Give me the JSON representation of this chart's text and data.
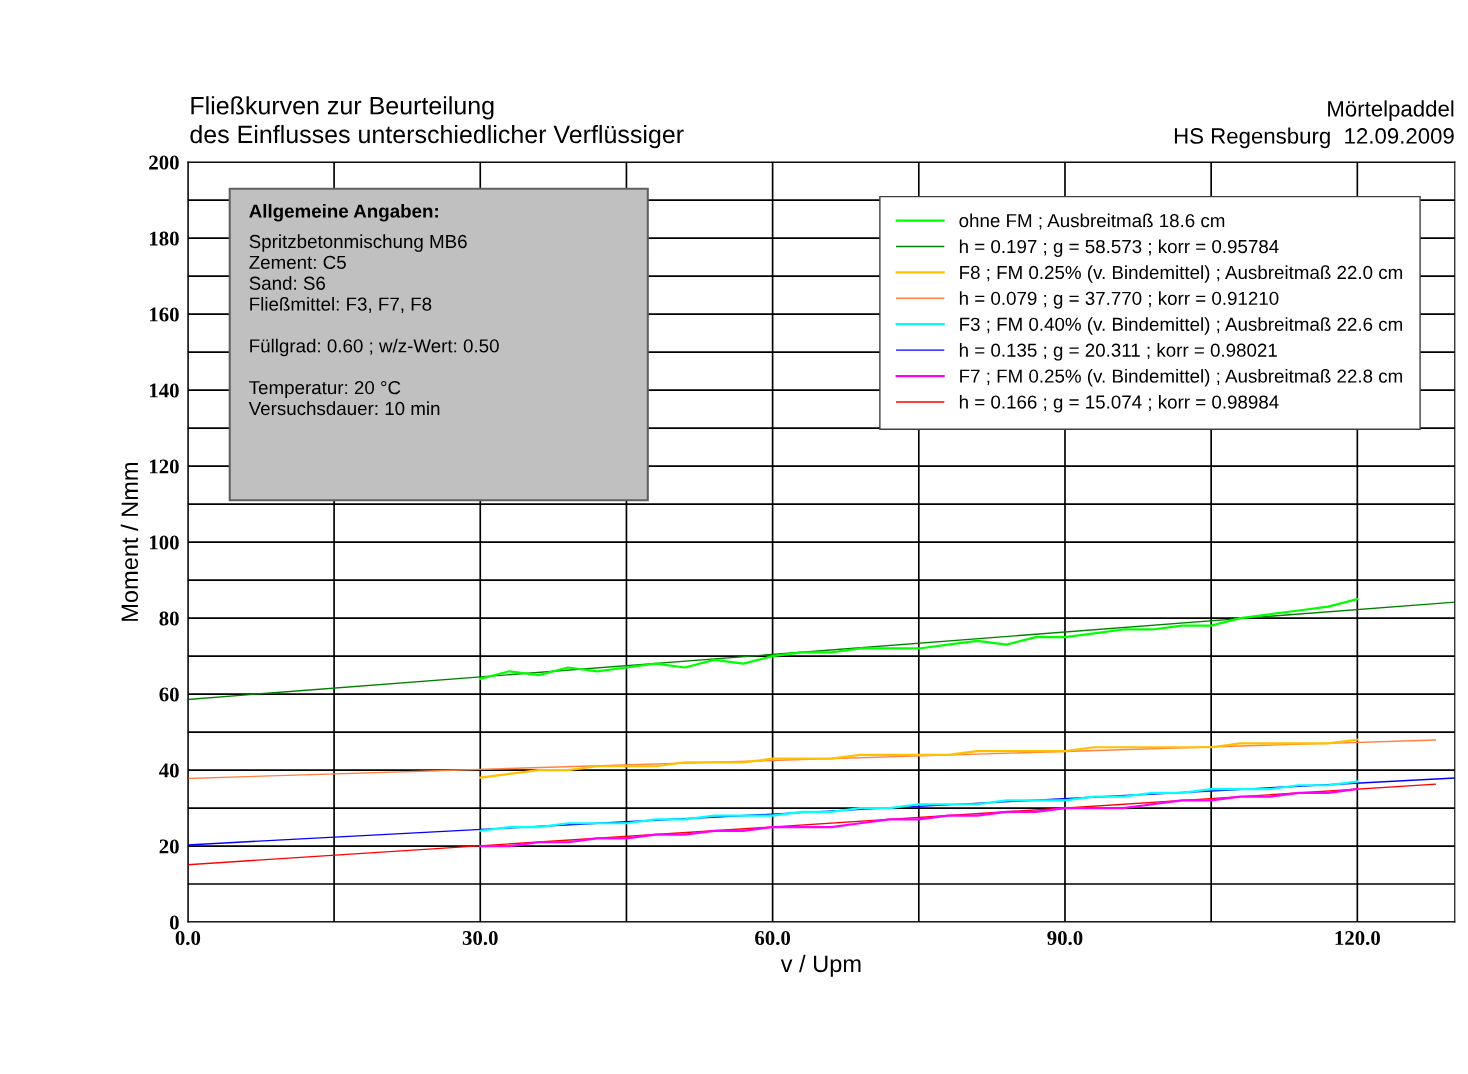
{
  "chart_data": {
    "type": "line",
    "title": "Fließkurven zur Beurteilung\ndes Einflusses unterschiedlicher Verflüssiger",
    "subtitle": "Mörtelpaddel\nHS Regensburg  12.09.2009",
    "xlabel": "v / Upm",
    "ylabel": "Moment / Nmm",
    "annotations": [
      "Allgemeine Angaben:",
      "Spritzbetonmischung MB6\nZement: C5\nSand: S6\nFließmittel: F3, F7, F8\n\nFüllgrad: 0.60 ; w/z-Wert: 0.50\n\nTemperatur: 20 °C\nVersuchsdauer: 10 min"
    ],
    "xlim": [
      0,
      130
    ],
    "ylim": [
      0,
      200
    ],
    "xticks": [
      {
        "value": 0,
        "label": "0.0"
      },
      {
        "value": 15,
        "label": null
      },
      {
        "value": 30,
        "label": "30.0"
      },
      {
        "value": 45,
        "label": null
      },
      {
        "value": 60,
        "label": "60.0"
      },
      {
        "value": 75,
        "label": null
      },
      {
        "value": 90,
        "label": "90.0"
      },
      {
        "value": 105,
        "label": null
      },
      {
        "value": 120,
        "label": "120.0"
      }
    ],
    "yticks": [
      0,
      {
        "value": 10,
        "label": null
      },
      20,
      {
        "value": 30,
        "label": null
      },
      40,
      {
        "value": 50,
        "label": null
      },
      60,
      {
        "value": 70,
        "label": null
      },
      80,
      {
        "value": 90,
        "label": null
      },
      100,
      {
        "value": 110,
        "label": null
      },
      120,
      {
        "value": 130,
        "label": null
      },
      140,
      {
        "value": 150,
        "label": null
      },
      160,
      {
        "value": 170,
        "label": null
      },
      180,
      {
        "value": 190,
        "label": null
      },
      200
    ],
    "grid": true,
    "legend": "top right",
    "marker": "none",
    "line_style": "solid",
    "series": [
      {
        "name": "ohne FM ; Ausbreitmaß 18.6 cm",
        "color": "#00ff00",
        "x": [
          30,
          33,
          36,
          39,
          42,
          45,
          48,
          51,
          54,
          57,
          60,
          63,
          66,
          69,
          72,
          75,
          78,
          81,
          84,
          87,
          90,
          93,
          96,
          99,
          102,
          105,
          108,
          111,
          114,
          117,
          120
        ],
        "values": [
          64,
          66,
          65,
          67,
          66,
          67,
          68,
          67,
          69,
          68,
          70,
          71,
          71,
          72,
          72,
          72,
          73,
          74,
          73,
          75,
          75,
          76,
          77,
          77,
          78,
          78,
          80,
          81,
          82,
          83,
          85
        ]
      },
      {
        "name": "h = 0.197 ; g = 58.573 ; korr = 0.95784",
        "color": "#008000",
        "x": [
          0,
          130
        ],
        "values": [
          58.6,
          84.2
        ]
      },
      {
        "name": "F8 ; FM 0.25% (v. Bindemittel) ; Ausbreitmaß 22.0 cm",
        "color": "#ffc000",
        "x": [
          30,
          33,
          36,
          39,
          42,
          45,
          48,
          51,
          54,
          57,
          60,
          63,
          66,
          69,
          72,
          75,
          78,
          81,
          84,
          87,
          90,
          93,
          96,
          99,
          102,
          105,
          108,
          111,
          114,
          117,
          120
        ],
        "values": [
          38,
          39,
          40,
          40,
          41,
          41,
          41,
          42,
          42,
          42,
          43,
          43,
          43,
          44,
          44,
          44,
          44,
          45,
          45,
          45,
          45,
          46,
          46,
          46,
          46,
          46,
          47,
          47,
          47,
          47,
          48
        ]
      },
      {
        "name": "h = 0.079 ; g = 37.770 ; korr = 0.91210",
        "color": "#ff8040",
        "x": [
          0,
          128
        ],
        "values": [
          37.8,
          47.9
        ]
      },
      {
        "name": "F3 ; FM 0.40% (v. Bindemittel) ; Ausbreitmaß 22.6 cm",
        "color": "#00ffff",
        "x": [
          30,
          33,
          36,
          39,
          42,
          45,
          48,
          51,
          54,
          57,
          60,
          63,
          66,
          69,
          72,
          75,
          78,
          81,
          84,
          87,
          90,
          93,
          96,
          99,
          102,
          105,
          108,
          111,
          114,
          117,
          120
        ],
        "values": [
          24,
          25,
          25,
          26,
          26,
          26,
          27,
          27,
          28,
          28,
          28,
          29,
          29,
          30,
          30,
          31,
          31,
          31,
          32,
          32,
          32,
          33,
          33,
          34,
          34,
          35,
          35,
          35,
          36,
          36,
          37
        ]
      },
      {
        "name": "h = 0.135 ; g = 20.311 ; korr = 0.98021",
        "color": "#0000ff",
        "x": [
          0,
          130
        ],
        "values": [
          20.3,
          37.9
        ]
      },
      {
        "name": "F7 ; FM 0.25% (v. Bindemittel) ; Ausbreitmaß 22.8 cm",
        "color": "#ff00ff",
        "x": [
          30,
          33,
          36,
          39,
          42,
          45,
          48,
          51,
          54,
          57,
          60,
          63,
          66,
          69,
          72,
          75,
          78,
          81,
          84,
          87,
          90,
          93,
          96,
          99,
          102,
          105,
          108,
          111,
          114,
          117,
          120
        ],
        "values": [
          20,
          20,
          21,
          21,
          22,
          22,
          23,
          23,
          24,
          24,
          25,
          25,
          25,
          26,
          27,
          27,
          28,
          28,
          29,
          29,
          30,
          30,
          30,
          31,
          32,
          32,
          33,
          33,
          34,
          34,
          35
        ]
      },
      {
        "name": "h = 0.166 ; g = 15.074 ; korr = 0.98984",
        "color": "#ff0000",
        "x": [
          0,
          128
        ],
        "values": [
          15.1,
          36.3
        ]
      }
    ]
  }
}
